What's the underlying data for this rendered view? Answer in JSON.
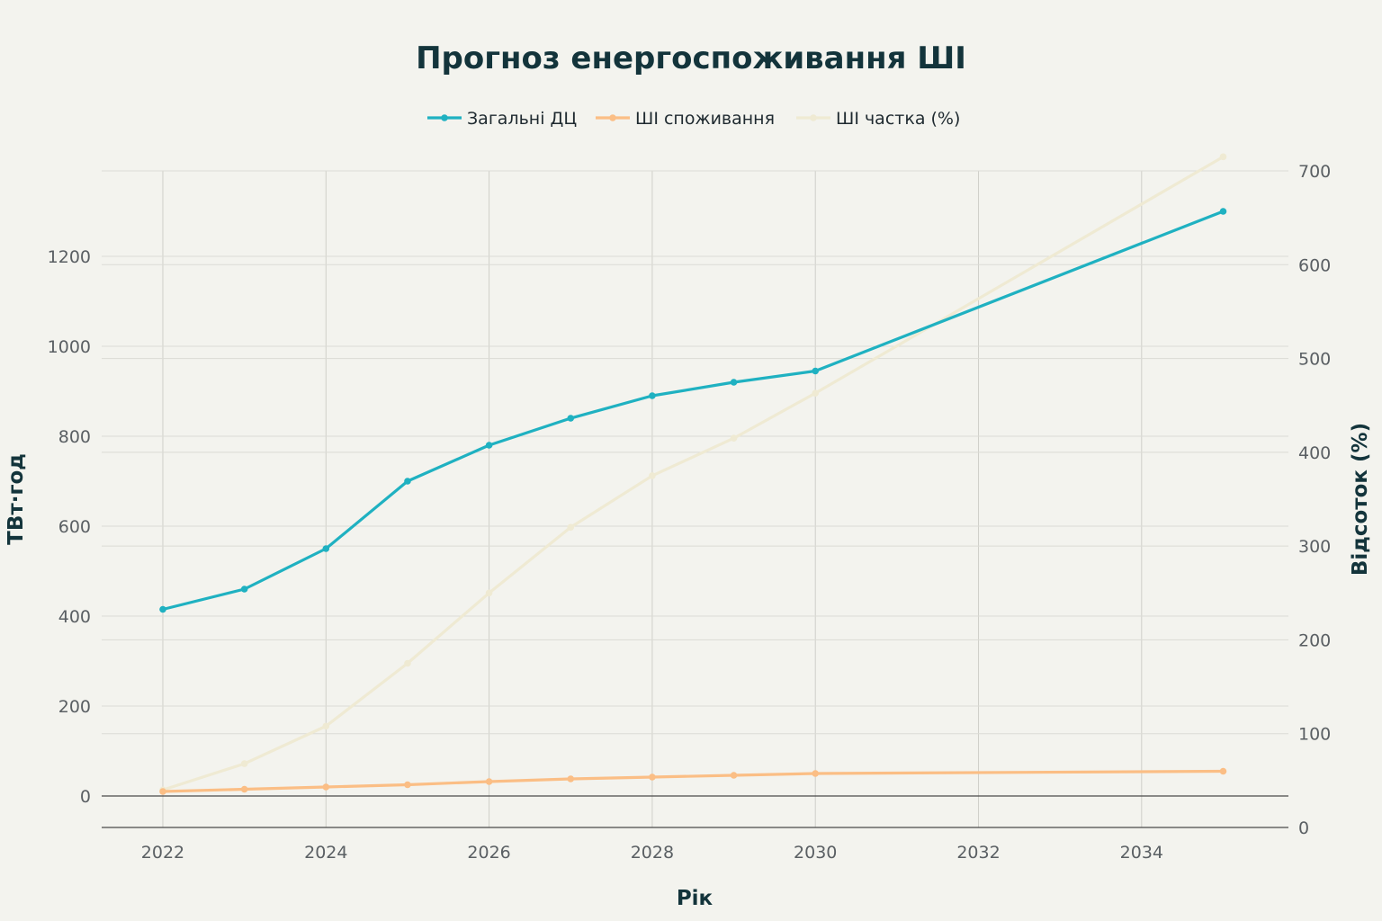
{
  "chart_data": {
    "type": "line",
    "title": "Прогноз енергоспоживання ШІ",
    "xlabel": "Рік",
    "ylabel": "ТВт·год",
    "y2label": "Відсоток (%)",
    "xlim": [
      2021.25,
      2035.8
    ],
    "ylim": [
      -70,
      1390
    ],
    "y2lim": [
      0,
      700
    ],
    "x_ticks": [
      2022,
      2024,
      2026,
      2028,
      2030,
      2032,
      2034
    ],
    "y_ticks": [
      0,
      200,
      400,
      600,
      800,
      1000,
      1200
    ],
    "y2_ticks": [
      0,
      100,
      200,
      300,
      400,
      500,
      600,
      700
    ],
    "grid": true,
    "legend": "top-center",
    "series": [
      {
        "name": "Загальні ДЦ",
        "axis": "left",
        "color": "#1fb1c1",
        "points": [
          [
            2022,
            415
          ],
          [
            2023,
            460
          ],
          [
            2024,
            550
          ],
          [
            2025,
            700
          ],
          [
            2026,
            780
          ],
          [
            2027,
            840
          ],
          [
            2028,
            890
          ],
          [
            2029,
            920
          ],
          [
            2030,
            945
          ],
          [
            2035,
            1300
          ]
        ]
      },
      {
        "name": "ШІ споживання",
        "axis": "left",
        "color": "#fbbe85",
        "points": [
          [
            2022,
            10
          ],
          [
            2023,
            15
          ],
          [
            2024,
            20
          ],
          [
            2025,
            25
          ],
          [
            2026,
            32
          ],
          [
            2027,
            38
          ],
          [
            2028,
            42
          ],
          [
            2029,
            46
          ],
          [
            2030,
            50
          ],
          [
            2035,
            55
          ]
        ]
      },
      {
        "name": "ШІ частка (%)",
        "axis": "right",
        "color": "#efead3",
        "points": [
          [
            2022,
            40
          ],
          [
            2023,
            68
          ],
          [
            2024,
            108
          ],
          [
            2025,
            175
          ],
          [
            2026,
            250
          ],
          [
            2027,
            320
          ],
          [
            2028,
            375
          ],
          [
            2029,
            415
          ],
          [
            2030,
            463
          ],
          [
            2035,
            715
          ]
        ]
      }
    ]
  }
}
